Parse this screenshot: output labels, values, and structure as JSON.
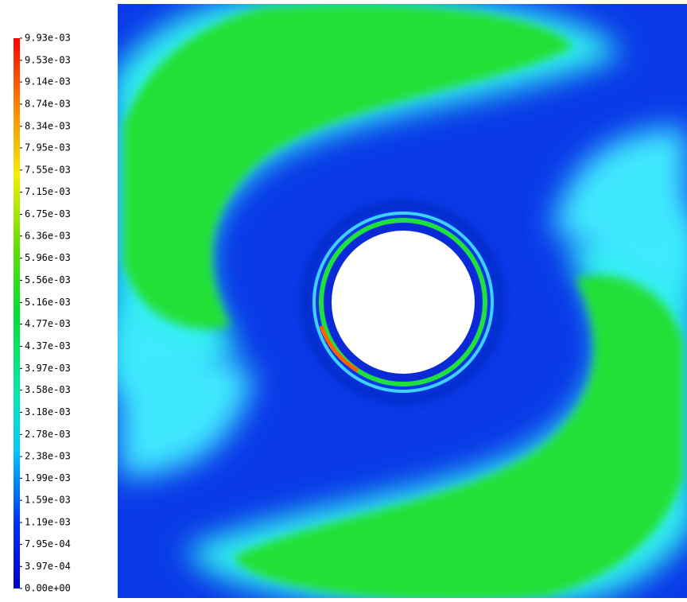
{
  "colorbar": {
    "range": [
      0,
      0.00993
    ],
    "ticks": [
      {
        "value": 0.00993,
        "label": "9.93e-03"
      },
      {
        "value": 0.00953,
        "label": "9.53e-03"
      },
      {
        "value": 0.00914,
        "label": "9.14e-03"
      },
      {
        "value": 0.00874,
        "label": "8.74e-03"
      },
      {
        "value": 0.00834,
        "label": "8.34e-03"
      },
      {
        "value": 0.00795,
        "label": "7.95e-03"
      },
      {
        "value": 0.00755,
        "label": "7.55e-03"
      },
      {
        "value": 0.00715,
        "label": "7.15e-03"
      },
      {
        "value": 0.00675,
        "label": "6.75e-03"
      },
      {
        "value": 0.00636,
        "label": "6.36e-03"
      },
      {
        "value": 0.00596,
        "label": "5.96e-03"
      },
      {
        "value": 0.00556,
        "label": "5.56e-03"
      },
      {
        "value": 0.00516,
        "label": "5.16e-03"
      },
      {
        "value": 0.00477,
        "label": "4.77e-03"
      },
      {
        "value": 0.00437,
        "label": "4.37e-03"
      },
      {
        "value": 0.00397,
        "label": "3.97e-03"
      },
      {
        "value": 0.00358,
        "label": "3.58e-03"
      },
      {
        "value": 0.00318,
        "label": "3.18e-03"
      },
      {
        "value": 0.00278,
        "label": "2.78e-03"
      },
      {
        "value": 0.00238,
        "label": "2.38e-03"
      },
      {
        "value": 0.00199,
        "label": "1.99e-03"
      },
      {
        "value": 0.00159,
        "label": "1.59e-03"
      },
      {
        "value": 0.00119,
        "label": "1.19e-03"
      },
      {
        "value": 0.000795,
        "label": "7.95e-04"
      },
      {
        "value": 0.000397,
        "label": "3.97e-04"
      },
      {
        "value": 0,
        "label": "0.00e+00"
      }
    ]
  }
}
